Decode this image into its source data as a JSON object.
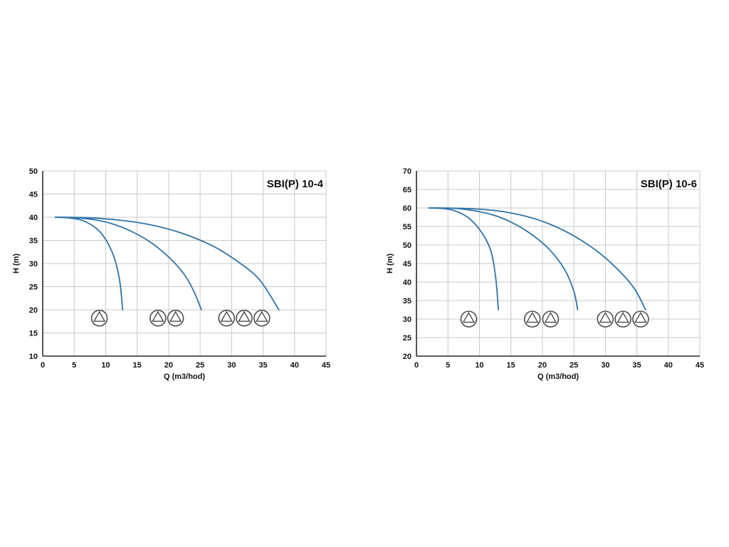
{
  "page": {
    "background": "#ffffff"
  },
  "style": {
    "curve_color": "#2e74a8",
    "grid_color": "#c8c8c8",
    "axis_color": "#2b2b2b",
    "text_color": "#111111",
    "icon_stroke": "#4d4d4d"
  },
  "chart_data": [
    {
      "type": "line",
      "title": "SBI(P) 10-4",
      "xlabel": "Q (m3/hod)",
      "ylabel": "H (m)",
      "xlim": [
        0,
        45
      ],
      "ylim": [
        10,
        50
      ],
      "xticks": [
        0,
        5,
        10,
        15,
        20,
        25,
        30,
        35,
        40,
        45
      ],
      "yticks": [
        10,
        15,
        20,
        25,
        30,
        35,
        40,
        45,
        50
      ],
      "grid": true,
      "legend": "none",
      "series": [
        {
          "name": "1-pump",
          "points": [
            [
              2,
              40
            ],
            [
              4.5,
              39.8
            ],
            [
              6.5,
              39.2
            ],
            [
              8.5,
              37.6
            ],
            [
              10,
              35.2
            ],
            [
              11.3,
              31.5
            ],
            [
              12.2,
              26.5
            ],
            [
              12.7,
              20
            ]
          ]
        },
        {
          "name": "2-pumps",
          "points": [
            [
              2,
              40
            ],
            [
              5,
              39.9
            ],
            [
              8,
              39.5
            ],
            [
              11,
              38.6
            ],
            [
              14,
              37
            ],
            [
              17,
              34.7
            ],
            [
              20,
              31.4
            ],
            [
              22.5,
              27.6
            ],
            [
              24,
              24
            ],
            [
              25.2,
              20
            ]
          ]
        },
        {
          "name": "3-pumps",
          "points": [
            [
              2,
              40
            ],
            [
              7,
              39.9
            ],
            [
              12,
              39.4
            ],
            [
              17,
              38.4
            ],
            [
              22,
              36.6
            ],
            [
              27,
              33.8
            ],
            [
              31,
              30.4
            ],
            [
              34.5,
              26.4
            ],
            [
              37.5,
              20
            ]
          ]
        }
      ],
      "pump_icons": {
        "y": 18.2,
        "groups": [
          [
            9
          ],
          [
            18.3,
            21.1
          ],
          [
            29.2,
            32,
            34.8
          ]
        ]
      }
    },
    {
      "type": "line",
      "title": "SBI(P) 10-6",
      "xlabel": "Q (m3/hod)",
      "ylabel": "H (m)",
      "xlim": [
        0,
        45
      ],
      "ylim": [
        20,
        70
      ],
      "xticks": [
        0,
        5,
        10,
        15,
        20,
        25,
        30,
        35,
        40,
        45
      ],
      "yticks": [
        20,
        25,
        30,
        35,
        40,
        45,
        50,
        55,
        60,
        65,
        70
      ],
      "grid": true,
      "legend": "none",
      "series": [
        {
          "name": "1-pump",
          "points": [
            [
              2,
              60
            ],
            [
              4.5,
              59.8
            ],
            [
              6.5,
              59
            ],
            [
              8.5,
              57
            ],
            [
              10.3,
              53.5
            ],
            [
              11.8,
              48.5
            ],
            [
              12.6,
              41
            ],
            [
              13,
              32.5
            ]
          ]
        },
        {
          "name": "2-pumps",
          "points": [
            [
              2,
              60
            ],
            [
              6,
              59.9
            ],
            [
              9,
              59.3
            ],
            [
              12,
              58.2
            ],
            [
              15,
              56.2
            ],
            [
              18,
              53.2
            ],
            [
              21,
              49
            ],
            [
              23.5,
              43.5
            ],
            [
              25,
              37.5
            ],
            [
              25.6,
              32.5
            ]
          ]
        },
        {
          "name": "3-pumps",
          "points": [
            [
              2,
              60
            ],
            [
              7,
              59.9
            ],
            [
              12,
              59.4
            ],
            [
              16,
              58.3
            ],
            [
              20,
              56.4
            ],
            [
              24,
              53.4
            ],
            [
              28,
              49.2
            ],
            [
              31.5,
              44.2
            ],
            [
              34.5,
              38.5
            ],
            [
              36.4,
              32.5
            ]
          ]
        }
      ],
      "pump_icons": {
        "y": 30,
        "groups": [
          [
            8.3
          ],
          [
            18.4,
            21.3
          ],
          [
            30,
            32.8,
            35.6
          ]
        ]
      }
    }
  ]
}
